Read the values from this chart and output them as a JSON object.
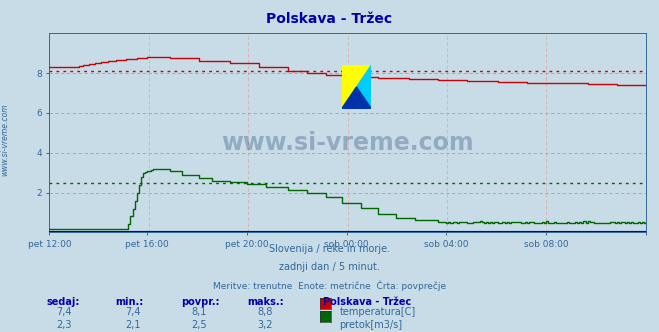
{
  "title": "Polskava - Tržec",
  "bg_color": "#c8dce8",
  "x_labels": [
    "pet 12:00",
    "pet 16:00",
    "pet 20:00",
    "sob 00:00",
    "sob 04:00",
    "sob 08:00"
  ],
  "ylim": [
    0,
    10
  ],
  "yticks": [
    2,
    4,
    6,
    8
  ],
  "temp_avg": 8.1,
  "flow_avg": 2.5,
  "temp_color": "#cc0000",
  "flow_color": "#006600",
  "height_color": "#0000cc",
  "grid_color_h": "#dd8888",
  "grid_color_v": "#ddaaaa",
  "subtitle1": "Slovenija / reke in morje.",
  "subtitle2": "zadnji dan / 5 minut.",
  "subtitle3": "Meritve: trenutne  Enote: metrične  Črta: povprečje",
  "legend_title": "Polskava - Tržec",
  "legend_items": [
    {
      "label": "temperatura[C]",
      "color": "#cc0000"
    },
    {
      "label": "pretok[m3/s]",
      "color": "#006600"
    }
  ],
  "stats_headers": [
    "sedaj:",
    "min.:",
    "povpr.:",
    "maks.:"
  ],
  "stats_row1": [
    "7,4",
    "7,4",
    "8,1",
    "8,8"
  ],
  "stats_row2": [
    "2,3",
    "2,1",
    "2,5",
    "3,2"
  ],
  "watermark": "www.si-vreme.com",
  "ylabel_left": "www.si-vreme.com",
  "text_color": "#336699",
  "header_color": "#0000aa"
}
